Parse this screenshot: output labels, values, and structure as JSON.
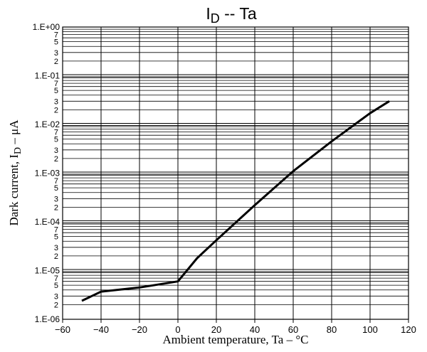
{
  "chart_data": {
    "type": "line",
    "title": {
      "main": "I",
      "sub": "D",
      "rest": " -- Ta"
    },
    "xlabel": "Ambient temperature, Ta – °C",
    "ylabel": {
      "main": "Dark current, I",
      "sub": "D",
      "rest": " – μA"
    },
    "x_scale": "linear",
    "y_scale": "log",
    "xlim": [
      -60,
      120
    ],
    "ylim": [
      1e-06,
      1
    ],
    "x_ticks": [
      -60,
      -40,
      -20,
      0,
      20,
      40,
      60,
      80,
      100,
      120
    ],
    "y_decade_labels": [
      "1.E-06",
      "1.E-05",
      "1.E-04",
      "1.E-03",
      "1.E-02",
      "1.E-01",
      "1.E+00"
    ],
    "y_minor_labels": [
      "2",
      "3",
      "5",
      "7"
    ],
    "grid": true,
    "series": [
      {
        "color": "#000000",
        "x": [
          -50,
          -40,
          -20,
          0,
          10,
          20,
          40,
          60,
          80,
          100,
          110
        ],
        "y": [
          2.4e-06,
          3.7e-06,
          4.5e-06,
          6e-06,
          1.8e-05,
          4.2e-05,
          0.00022,
          0.0011,
          0.0045,
          0.017,
          0.03
        ]
      }
    ]
  }
}
